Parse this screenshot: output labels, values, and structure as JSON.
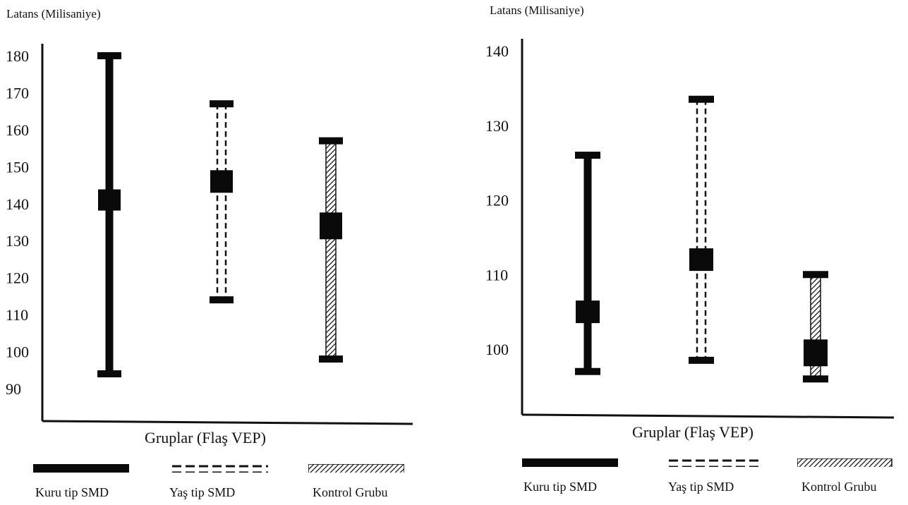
{
  "chart_data": [
    {
      "type": "errorbar",
      "ylabel": "Latans (Milisaniye)",
      "xlabel": "Gruplar (Flaş VEP)",
      "yticks": [
        180,
        170,
        160,
        150,
        140,
        130,
        120,
        110,
        100,
        90
      ],
      "ylim": [
        85,
        183
      ],
      "series": [
        {
          "name": "Kuru tip SMD",
          "style": "solid",
          "mean": 141,
          "low": 94,
          "high": 180
        },
        {
          "name": "Yaş tip SMD",
          "style": "dashed",
          "mean": 146,
          "low": 114,
          "high": 167
        },
        {
          "name": "Kontrol Grubu",
          "style": "hatched",
          "mean": 134,
          "low": 98,
          "high": 157
        }
      ]
    },
    {
      "type": "errorbar",
      "ylabel": "Latans (Milisaniye)",
      "xlabel": "Gruplar (Flaş VEP)",
      "yticks": [
        140,
        130,
        120,
        110,
        100
      ],
      "ylim": [
        91,
        141
      ],
      "series": [
        {
          "name": "Kuru tip SMD",
          "style": "solid",
          "mean": 105,
          "low": 97,
          "high": 126
        },
        {
          "name": "Yaş tip SMD",
          "style": "dashed",
          "mean": 112,
          "low": 98.5,
          "high": 133.5
        },
        {
          "name": "Kontrol Grubu",
          "style": "hatched",
          "mean": 99.5,
          "low": 96,
          "high": 110
        }
      ]
    }
  ]
}
